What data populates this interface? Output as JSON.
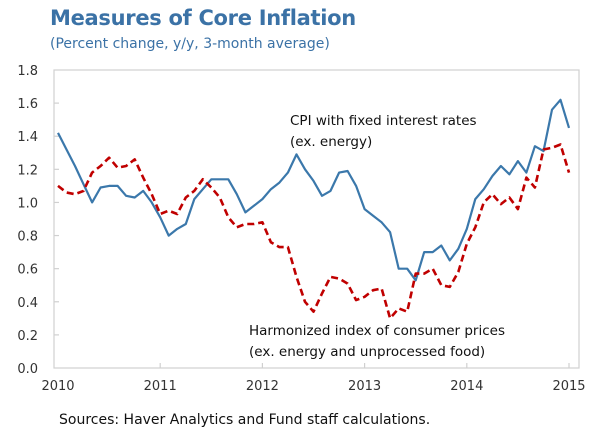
{
  "chart_data": {
    "type": "line",
    "title": "Measures of Core Inflation",
    "subtitle": "(Percent change, y/y, 3-month average)",
    "xlabel": "",
    "ylabel": "",
    "xlim": [
      2010,
      2015
    ],
    "ylim": [
      0.0,
      1.8
    ],
    "x_ticks": [
      "2010",
      "2011",
      "2012",
      "2013",
      "2014",
      "2015"
    ],
    "y_ticks": [
      "0.0",
      "0.2",
      "0.4",
      "0.6",
      "0.8",
      "1.0",
      "1.2",
      "1.4",
      "1.6",
      "1.8"
    ],
    "grid": false,
    "frequency": "monthly, Jan 2010 to Jan 2015",
    "series": [
      {
        "name": "CPI with fixed interest rates (ex. energy)",
        "color": "#3b78ab",
        "style": "solid",
        "values": [
          1.42,
          1.32,
          1.22,
          1.11,
          1.0,
          1.09,
          1.1,
          1.1,
          1.04,
          1.03,
          1.07,
          1.0,
          0.91,
          0.8,
          0.84,
          0.87,
          1.02,
          1.08,
          1.14,
          1.14,
          1.14,
          1.05,
          0.94,
          0.98,
          1.02,
          1.08,
          1.12,
          1.18,
          1.29,
          1.2,
          1.13,
          1.04,
          1.07,
          1.18,
          1.19,
          1.1,
          0.96,
          0.92,
          0.88,
          0.82,
          0.6,
          0.6,
          0.53,
          0.7,
          0.7,
          0.74,
          0.65,
          0.72,
          0.84,
          1.02,
          1.08,
          1.16,
          1.22,
          1.17,
          1.25,
          1.18,
          1.34,
          1.31,
          1.56,
          1.62,
          1.45
        ]
      },
      {
        "name": "Harmonized index of consumer prices (ex. energy and unprocessed food)",
        "color": "#c00000",
        "style": "dashed",
        "values": [
          1.1,
          1.06,
          1.05,
          1.07,
          1.18,
          1.22,
          1.27,
          1.21,
          1.22,
          1.26,
          1.15,
          1.05,
          0.93,
          0.95,
          0.93,
          1.03,
          1.07,
          1.14,
          1.09,
          1.03,
          0.91,
          0.85,
          0.87,
          0.87,
          0.88,
          0.76,
          0.73,
          0.73,
          0.55,
          0.4,
          0.34,
          0.45,
          0.55,
          0.54,
          0.51,
          0.41,
          0.43,
          0.47,
          0.48,
          0.3,
          0.36,
          0.34,
          0.57,
          0.57,
          0.6,
          0.5,
          0.49,
          0.58,
          0.75,
          0.85,
          1.0,
          1.05,
          0.99,
          1.03,
          0.96,
          1.15,
          1.09,
          1.32,
          1.33,
          1.35,
          1.18
        ]
      }
    ],
    "annotations": [
      {
        "series": 0,
        "lines": [
          "CPI with fixed interest rates",
          "(ex. energy)"
        ]
      },
      {
        "series": 1,
        "lines": [
          "Harmonized index of consumer prices",
          "(ex. energy and unprocessed food)"
        ]
      }
    ],
    "source": "Sources: Haver Analytics and Fund staff calculations."
  }
}
